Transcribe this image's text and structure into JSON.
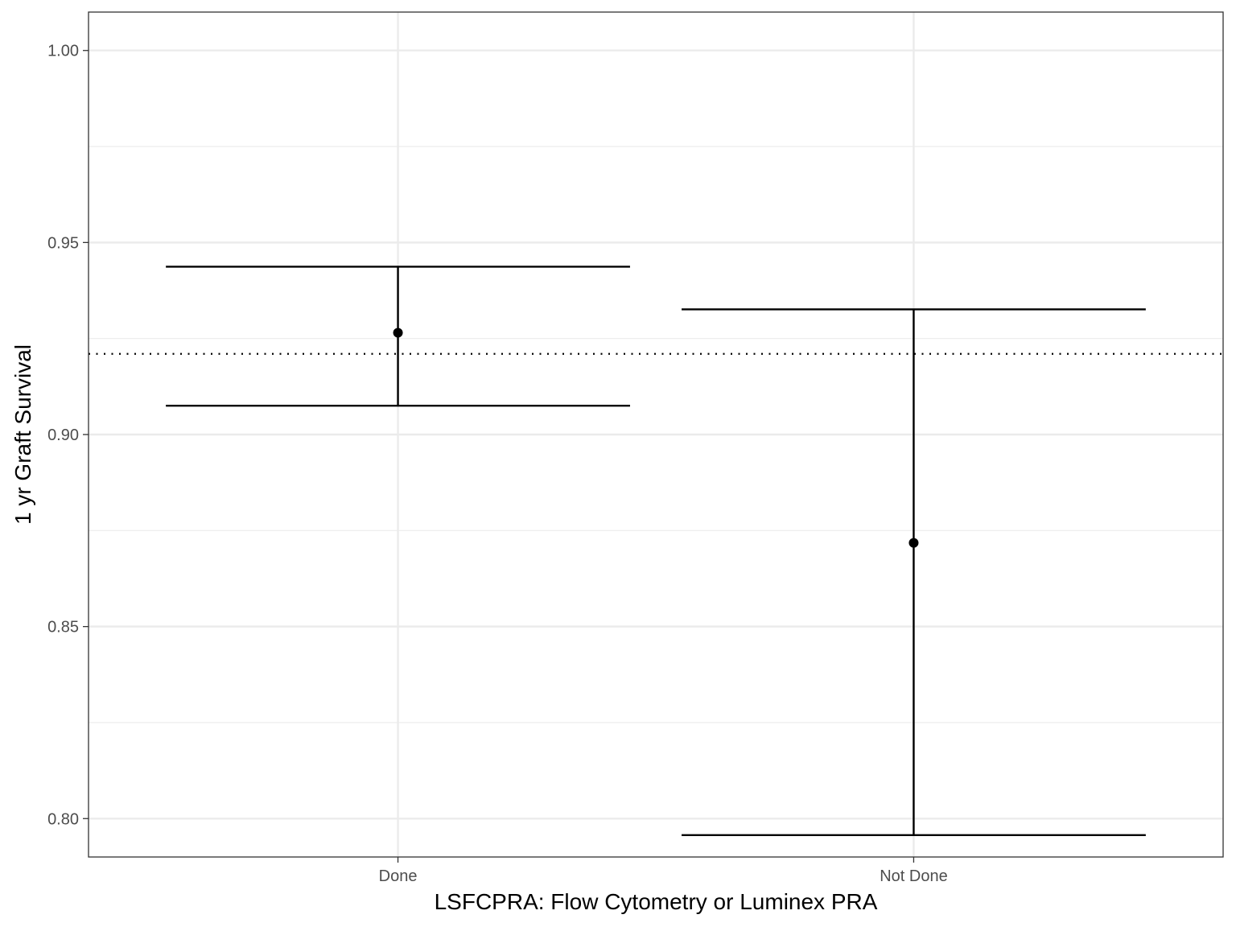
{
  "chart_data": {
    "type": "errorbar",
    "xlabel": "LSFCPRA: Flow Cytometry or Luminex PRA",
    "ylabel": "1 yr Graft Survival",
    "categories": [
      "Done",
      "Not Done"
    ],
    "points": [
      {
        "category": "Done",
        "estimate": 0.9265,
        "lower": 0.9075,
        "upper": 0.9437
      },
      {
        "category": "Not Done",
        "estimate": 0.8718,
        "lower": 0.7957,
        "upper": 0.9326
      }
    ],
    "reference_line": {
      "y": 0.921,
      "style": "dotted"
    },
    "ylim": [
      0.79,
      1.01
    ],
    "y_ticks": [
      0.8,
      0.85,
      0.9,
      0.95,
      1.0
    ],
    "y_tick_labels": [
      "0.80",
      "0.85",
      "0.90",
      "0.95",
      "1.00"
    ],
    "y_minor_ticks": [
      0.825,
      0.875,
      0.925,
      0.975
    ],
    "grid": true,
    "legend": "none",
    "colors": {
      "mark": "#000000",
      "grid": "#ebebeb",
      "panel_border": "#333333",
      "tick_text": "#4d4d4d"
    }
  }
}
